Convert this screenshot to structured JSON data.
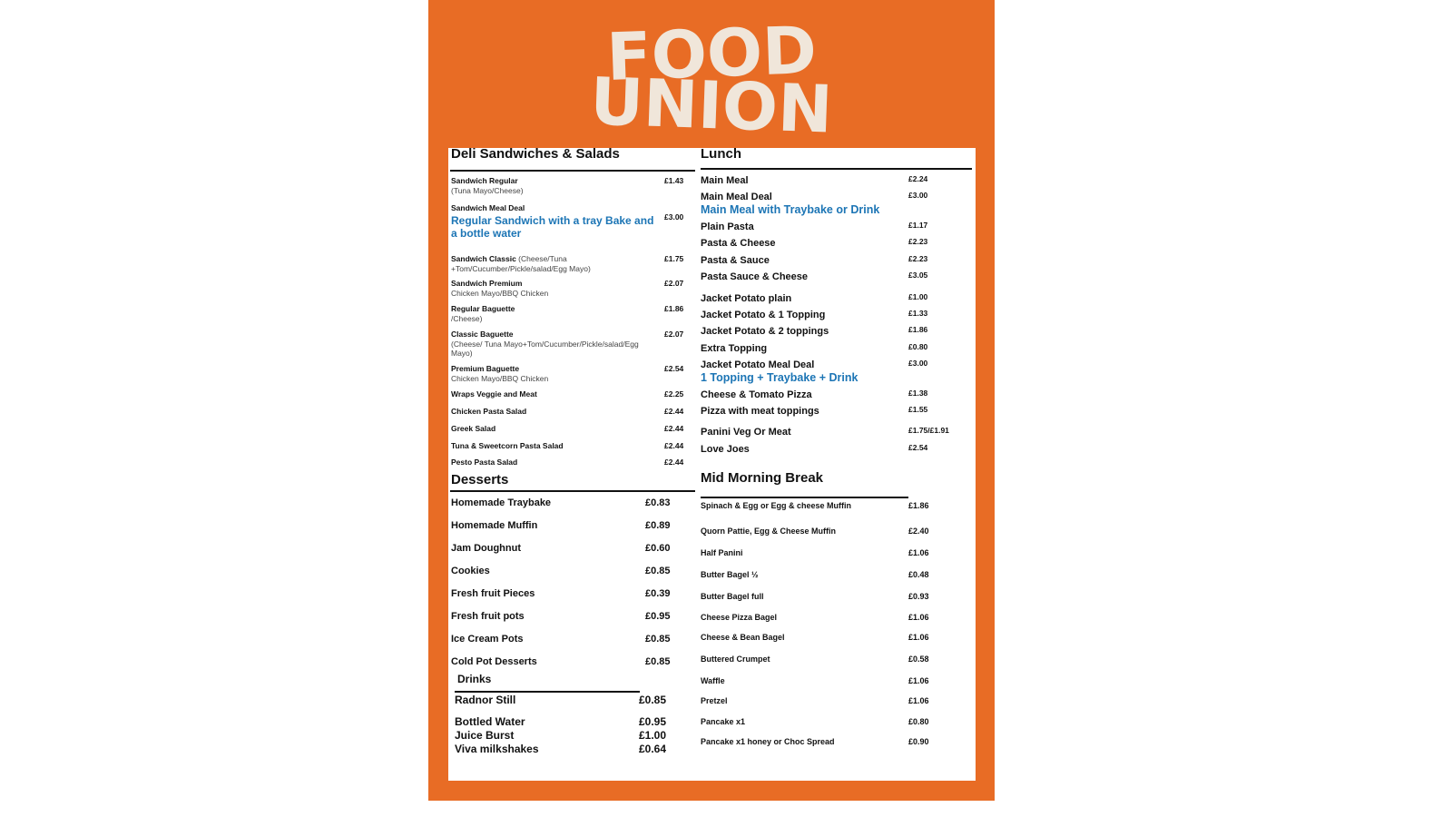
{
  "logo": {
    "line1": "FOOD",
    "line2": "UNION",
    "color": "#F0E6DA"
  },
  "colors": {
    "background": "#E86C25",
    "accent_blue": "#1C75B5"
  },
  "deli": {
    "title": "Deli Sandwiches & Salads",
    "items": [
      {
        "name": "Sandwich Regular",
        "sub": "(Tuna Mayo/Cheese)",
        "price": "£1.43"
      },
      {
        "name": "Sandwich Meal Deal",
        "highlight": "Regular Sandwich with a tray Bake and a bottle water",
        "price": "£3.00"
      },
      {
        "name": "Sandwich Classic",
        "inline": " (Cheese/Tuna",
        "sub": "+Tom/Cucumber/Pickle/salad/Egg Mayo)",
        "price": "£1.75"
      },
      {
        "name": "Sandwich Premium",
        "sub": "Chicken Mayo/BBQ Chicken",
        "price": "£2.07"
      },
      {
        "name": " Regular Baguette",
        "sub": "/Cheese)",
        "price": "£1.86"
      },
      {
        "name": "Classic Baguette",
        "sub": "(Cheese/ Tuna Mayo+Tom/Cucumber/Pickle/salad/Egg Mayo)",
        "price": "£2.07"
      },
      {
        "name": "Premium Baguette",
        "sub": "Chicken Mayo/BBQ Chicken",
        "price": "£2.54"
      },
      {
        "name": "Wraps  Veggie and Meat",
        "price": "£2.25"
      },
      {
        "name": "Chicken Pasta Salad",
        "price": "£2.44"
      },
      {
        "name": "Greek Salad",
        "price": "£2.44"
      },
      {
        "name": "Tuna & Sweetcorn Pasta Salad",
        "price": "£2.44"
      },
      {
        "name": "Pesto Pasta Salad",
        "price": "£2.44"
      }
    ]
  },
  "desserts": {
    "title": "Desserts",
    "items": [
      {
        "name": "Homemade Traybake",
        "price": "£0.83"
      },
      {
        "name": "Homemade Muffin",
        "price": "£0.89"
      },
      {
        "name": "Jam Doughnut",
        "price": "£0.60"
      },
      {
        "name": "Cookies",
        "price": "£0.85"
      },
      {
        "name": "Fresh fruit Pieces",
        "price": "£0.39"
      },
      {
        "name": "Fresh fruit pots",
        "price": "£0.95"
      },
      {
        "name": "Ice Cream Pots",
        "price": "£0.85"
      },
      {
        "name": "Cold Pot Desserts",
        "price": "£0.85"
      }
    ]
  },
  "drinks": {
    "title": "Drinks",
    "items": [
      {
        "name": "Radnor Still",
        "price": "£0.85"
      },
      {
        "name": "Bottled Water",
        "price": "£0.95"
      },
      {
        "name": "Juice Burst",
        "price": "£1.00"
      },
      {
        "name": "Viva milkshakes",
        "price": "£0.64"
      }
    ]
  },
  "lunch": {
    "title": "Lunch",
    "items": [
      {
        "name": "Main Meal",
        "price": "£2.24"
      },
      {
        "name": "Main Meal Deal",
        "highlight": "Main Meal  with Traybake or Drink",
        "price": "£3.00"
      },
      {
        "name": "Plain Pasta",
        "price": "£1.17"
      },
      {
        "name": "Pasta & Cheese",
        "price": "£2.23"
      },
      {
        "name": "Pasta & Sauce",
        "price": "£2.23"
      },
      {
        "name": "Pasta Sauce & Cheese",
        "price": "£3.05"
      },
      {
        "name": "Jacket Potato plain",
        "price": "£1.00"
      },
      {
        "name": "Jacket Potato & 1 Topping",
        "price": "£1.33"
      },
      {
        "name": "Jacket Potato & 2 toppings",
        "price": "£1.86"
      },
      {
        "name": "Extra Topping",
        "price": "£0.80"
      },
      {
        "name": "Jacket Potato Meal Deal",
        "highlight": "1 Topping + Traybake + Drink",
        "price": "£3.00"
      },
      {
        "name": "Cheese & Tomato Pizza",
        "price": "£1.38"
      },
      {
        "name": "Pizza with meat toppings",
        "price": "£1.55"
      },
      {
        "name": "Panini Veg Or Meat",
        "price": "£1.75/£1.91"
      },
      {
        "name": "Love Joes",
        "price": "£2.54"
      }
    ]
  },
  "mid_morning": {
    "title": "Mid Morning Break",
    "items": [
      {
        "name": "Spinach & Egg or Egg & cheese Muffin",
        "price": "£1.86"
      },
      {
        "name": "Quorn Pattie, Egg & Cheese Muffin",
        "price": "£2.40"
      },
      {
        "name": "Half Panini",
        "price": "£1.06"
      },
      {
        "name": "Butter Bagel ½",
        "price": "£0.48"
      },
      {
        "name": "Butter Bagel  full",
        "price": "£0.93"
      },
      {
        "name": "Cheese Pizza  Bagel",
        "price": "£1.06"
      },
      {
        "name": "Cheese & Bean Bagel",
        "price": "£1.06"
      },
      {
        "name": "Buttered Crumpet",
        "price": "£0.58"
      },
      {
        "name": "Waffle",
        "price": "£1.06"
      },
      {
        "name": "Pretzel",
        "price": "£1.06"
      },
      {
        "name": "Pancake x1",
        "price": "£0.80"
      },
      {
        "name": "Pancake x1 honey or Choc Spread",
        "price": "£0.90"
      }
    ]
  }
}
